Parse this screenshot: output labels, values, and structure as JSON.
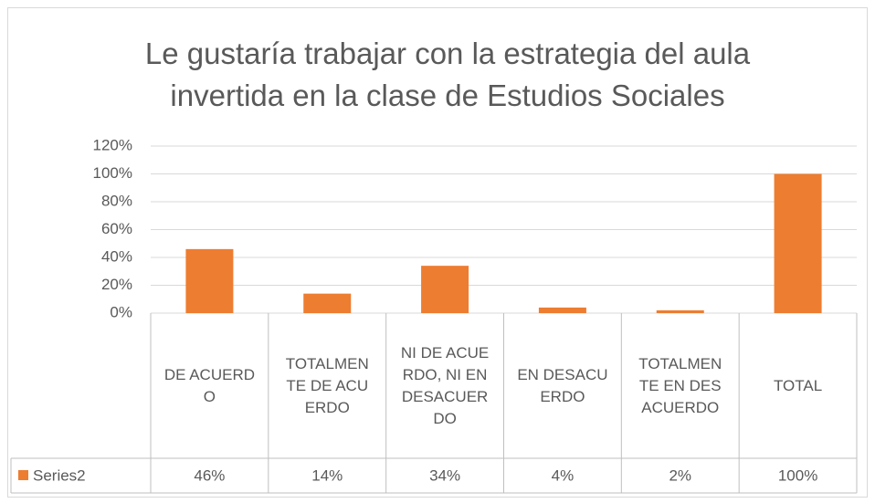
{
  "chart_data": {
    "type": "bar",
    "title": "Le gustaría trabajar con la estrategia del aula invertida en la clase de Estudios Sociales",
    "categories": [
      "DE ACUERDO",
      "TOTALMENTE DE ACUERDO",
      "NI DE ACUERDO, NI EN DESACUERDO",
      "EN DESACUERDO",
      "TOTALMENTE EN DESACUERDO",
      "TOTAL"
    ],
    "series": [
      {
        "name": "Series2",
        "color": "#ed7d31",
        "values": [
          46,
          14,
          34,
          4,
          2,
          100
        ],
        "value_labels": [
          "46%",
          "14%",
          "34%",
          "4%",
          "2%",
          "100%"
        ]
      }
    ],
    "ylim": [
      0,
      120
    ],
    "yticks": [
      {
        "value": 0,
        "label": "0%"
      },
      {
        "value": 20,
        "label": "20%"
      },
      {
        "value": 40,
        "label": "40%"
      },
      {
        "value": 60,
        "label": "60%"
      },
      {
        "value": 80,
        "label": "80%"
      },
      {
        "value": 100,
        "label": "100%"
      },
      {
        "value": 120,
        "label": "120%"
      }
    ],
    "grid": true,
    "data_table": true
  }
}
